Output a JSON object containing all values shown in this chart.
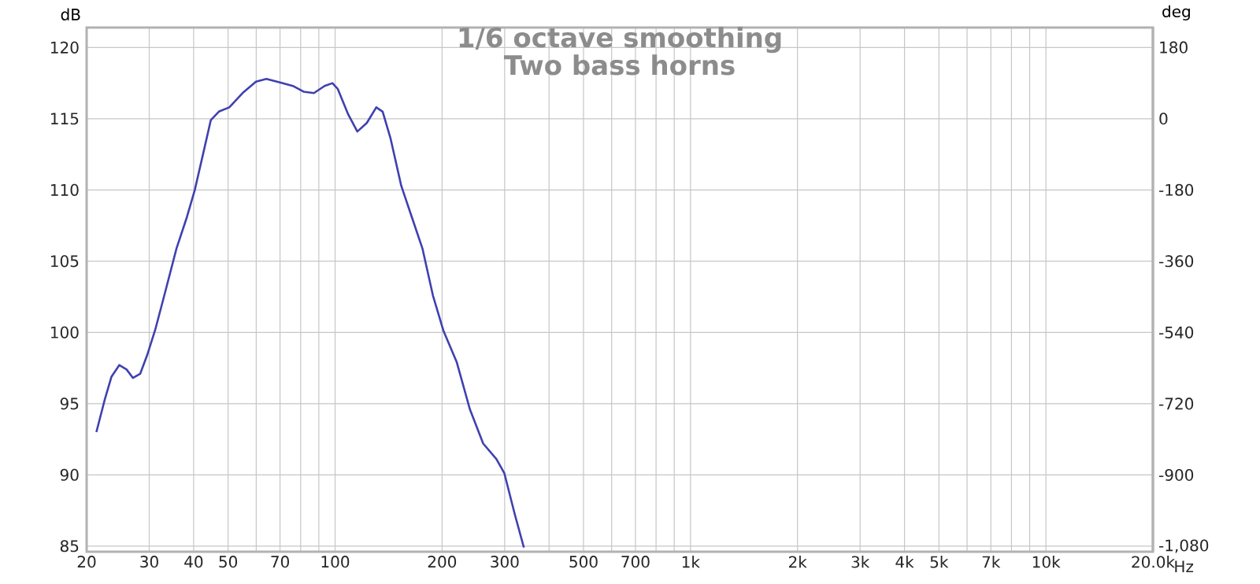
{
  "chart_data": {
    "type": "line",
    "title": "1/6 octave smoothing\nTwo bass horns",
    "ylabel": "dB",
    "y2label": "deg",
    "log": "x",
    "grid": true,
    "xlim": [
      20,
      20000
    ],
    "ylim": [
      84.6,
      121.4
    ],
    "y2lim": [
      -1094,
      230
    ],
    "xticks": [
      20,
      30,
      40,
      50,
      {
        "value": 60,
        "label": null
      },
      70,
      {
        "value": 80,
        "label": null
      },
      {
        "value": 90,
        "label": null
      },
      100,
      200,
      300,
      {
        "value": 400,
        "label": null
      },
      500,
      {
        "value": 600,
        "label": null
      },
      700,
      {
        "value": 800,
        "label": null
      },
      {
        "value": 900,
        "label": null
      },
      {
        "value": 1000,
        "label": "1k"
      },
      {
        "value": 2000,
        "label": "2k"
      },
      {
        "value": 3000,
        "label": "3k"
      },
      {
        "value": 4000,
        "label": "4k"
      },
      {
        "value": 5000,
        "label": "5k"
      },
      {
        "value": 6000,
        "label": null
      },
      {
        "value": 7000,
        "label": "7k"
      },
      {
        "value": 8000,
        "label": null
      },
      {
        "value": 9000,
        "label": null
      },
      {
        "value": 10000,
        "label": "10k"
      },
      {
        "value": 20000,
        "label": "20.0k"
      }
    ],
    "xlabel": "Hz",
    "yticks": [
      85,
      90,
      95,
      100,
      105,
      110,
      115,
      120
    ],
    "y2ticks": [
      {
        "value": -1080,
        "label": "-1,080"
      },
      -900,
      -720,
      -540,
      -360,
      -180,
      0,
      180
    ],
    "series": [
      {
        "color": "#4040b0",
        "x": [
          21.3,
          22.5,
          23.5,
          24.7,
          25.9,
          27.0,
          28.3,
          29.6,
          31.2,
          33.4,
          35.8,
          38.3,
          40.3,
          42.5,
          44.7,
          47.1,
          50.4,
          54.9,
          59.9,
          64.1,
          71.0,
          76.1,
          81.5,
          87.2,
          93.4,
          98.3,
          101.7,
          108.9,
          115.5,
          122.8,
          130.6,
          136.1,
          143.3,
          153.5,
          164.4,
          176.1,
          188.5,
          201.9,
          220,
          239.5,
          261,
          284.5,
          299.5,
          320.6,
          339.8
        ],
        "values": [
          93.0,
          95.3,
          96.9,
          97.7,
          97.4,
          96.8,
          97.1,
          98.4,
          100.2,
          103.0,
          105.9,
          108.1,
          110.0,
          112.5,
          114.9,
          115.5,
          115.8,
          116.8,
          117.6,
          117.8,
          117.5,
          117.3,
          116.9,
          116.8,
          117.3,
          117.5,
          117.1,
          115.3,
          114.1,
          114.7,
          115.8,
          115.5,
          113.6,
          110.3,
          108.1,
          105.9,
          102.6,
          100.1,
          97.9,
          94.6,
          92.2,
          91.1,
          90.1,
          87.2,
          84.9
        ]
      }
    ]
  }
}
